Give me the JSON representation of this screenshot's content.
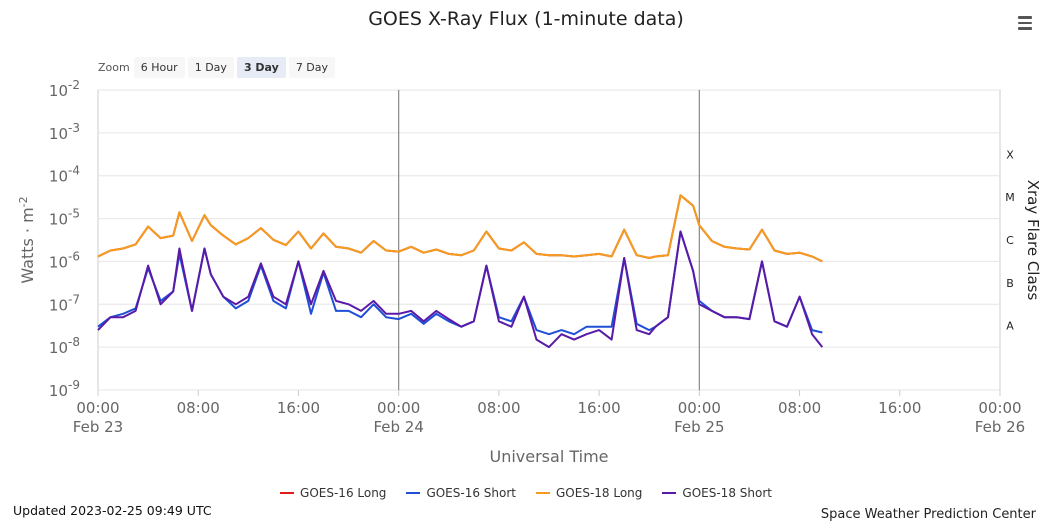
{
  "header": {
    "menu_icon": "hamburger-menu-icon"
  },
  "zoom": {
    "label": "Zoom",
    "options": [
      "6 Hour",
      "1 Day",
      "3 Day",
      "7 Day"
    ],
    "selected": "3 Day"
  },
  "footer": {
    "updated": "Updated 2023-02-25 09:49 UTC",
    "credit": "Space Weather Prediction Center"
  },
  "chart_data": {
    "type": "line",
    "title": "GOES X-Ray Flux (1-minute data)",
    "xlabel": "Universal Time",
    "ylabel": "Watts · m",
    "ylabel_superscript": "-2",
    "y2label": "Xray Flare Class",
    "yscale": "log",
    "ylim": [
      1e-09,
      0.01
    ],
    "y_tick_labels": [
      "10",
      "10",
      "10",
      "10",
      "10",
      "10",
      "10",
      "10"
    ],
    "y_tick_exponents": [
      "-2",
      "-3",
      "-4",
      "-5",
      "-6",
      "-7",
      "-8",
      "-9"
    ],
    "xlim": [
      "2023-02-23 00:00",
      "2023-02-26 00:00"
    ],
    "x_tick_times": [
      "00:00",
      "08:00",
      "16:00",
      "00:00",
      "08:00",
      "16:00",
      "00:00",
      "08:00",
      "16:00",
      "00:00"
    ],
    "x_tick_dates": [
      "Feb 23",
      "",
      "",
      "Feb 24",
      "",
      "",
      "Feb 25",
      "",
      "",
      "Feb 26"
    ],
    "x_ticks": [
      "2023-02-23 00:00",
      "2023-02-23 08:00",
      "2023-02-23 16:00",
      "2023-02-24 00:00",
      "2023-02-24 08:00",
      "2023-02-24 16:00",
      "2023-02-25 00:00",
      "2023-02-25 08:00",
      "2023-02-25 16:00",
      "2023-02-26 00:00"
    ],
    "flare_classes": [
      {
        "label": "X",
        "threshold": 0.0001
      },
      {
        "label": "M",
        "threshold": 1e-05
      },
      {
        "label": "C",
        "threshold": 1e-06
      },
      {
        "label": "B",
        "threshold": 1e-07
      },
      {
        "label": "A",
        "threshold": 1e-08
      }
    ],
    "day_boundaries": [
      "2023-02-24 00:00",
      "2023-02-25 00:00"
    ],
    "x": [
      "2023-02-23 00:00",
      "2023-02-23 01:00",
      "2023-02-23 02:00",
      "2023-02-23 03:00",
      "2023-02-23 04:00",
      "2023-02-23 05:00",
      "2023-02-23 06:00",
      "2023-02-23 06:30",
      "2023-02-23 07:30",
      "2023-02-23 08:30",
      "2023-02-23 09:00",
      "2023-02-23 10:00",
      "2023-02-23 11:00",
      "2023-02-23 12:00",
      "2023-02-23 13:00",
      "2023-02-23 14:00",
      "2023-02-23 15:00",
      "2023-02-23 16:00",
      "2023-02-23 17:00",
      "2023-02-23 18:00",
      "2023-02-23 19:00",
      "2023-02-23 20:00",
      "2023-02-23 21:00",
      "2023-02-23 22:00",
      "2023-02-23 23:00",
      "2023-02-24 00:00",
      "2023-02-24 01:00",
      "2023-02-24 02:00",
      "2023-02-24 03:00",
      "2023-02-24 04:00",
      "2023-02-24 05:00",
      "2023-02-24 06:00",
      "2023-02-24 07:00",
      "2023-02-24 08:00",
      "2023-02-24 09:00",
      "2023-02-24 10:00",
      "2023-02-24 11:00",
      "2023-02-24 12:00",
      "2023-02-24 13:00",
      "2023-02-24 14:00",
      "2023-02-24 15:00",
      "2023-02-24 16:00",
      "2023-02-24 17:00",
      "2023-02-24 18:00",
      "2023-02-24 19:00",
      "2023-02-24 20:00",
      "2023-02-24 20:30",
      "2023-02-24 21:30",
      "2023-02-24 22:30",
      "2023-02-24 23:30",
      "2023-02-25 00:00",
      "2023-02-25 01:00",
      "2023-02-25 02:00",
      "2023-02-25 03:00",
      "2023-02-25 04:00",
      "2023-02-25 05:00",
      "2023-02-25 06:00",
      "2023-02-25 07:00",
      "2023-02-25 08:00",
      "2023-02-25 09:00",
      "2023-02-25 09:49"
    ],
    "series": [
      {
        "name": "GOES-16 Long",
        "color": "#e31a1c",
        "values": [
          1.3e-06,
          1.8e-06,
          2e-06,
          2.5e-06,
          6.5e-06,
          3.5e-06,
          4e-06,
          1.4e-05,
          3e-06,
          1.2e-05,
          7e-06,
          4e-06,
          2.5e-06,
          3.5e-06,
          6e-06,
          3.2e-06,
          2.4e-06,
          5e-06,
          2e-06,
          4.5e-06,
          2.2e-06,
          2e-06,
          1.6e-06,
          3e-06,
          1.8e-06,
          1.7e-06,
          2.2e-06,
          1.6e-06,
          1.9e-06,
          1.5e-06,
          1.4e-06,
          1.8e-06,
          5e-06,
          2e-06,
          1.8e-06,
          2.8e-06,
          1.5e-06,
          1.4e-06,
          1.4e-06,
          1.3e-06,
          1.4e-06,
          1.5e-06,
          1.3e-06,
          5.5e-06,
          1.4e-06,
          1.2e-06,
          1.3e-06,
          1.4e-06,
          3.5e-05,
          2e-05,
          7e-06,
          3e-06,
          2.2e-06,
          2e-06,
          1.9e-06,
          5.5e-06,
          1.8e-06,
          1.5e-06,
          1.6e-06,
          1.3e-06,
          1e-06
        ]
      },
      {
        "name": "GOES-16 Short",
        "color": "#1f4fd6",
        "values": [
          3e-08,
          5e-08,
          6e-08,
          8e-08,
          7e-07,
          1.2e-07,
          2e-07,
          1.5e-06,
          7e-08,
          2e-06,
          5e-07,
          1.5e-07,
          8e-08,
          1.2e-07,
          8e-07,
          1.2e-07,
          8e-08,
          1e-06,
          6e-08,
          5.5e-07,
          7e-08,
          7e-08,
          5e-08,
          1e-07,
          5e-08,
          4.5e-08,
          6e-08,
          3.5e-08,
          6e-08,
          4e-08,
          3e-08,
          4e-08,
          8e-07,
          5e-08,
          4e-08,
          1.5e-07,
          2.5e-08,
          2e-08,
          2.5e-08,
          2e-08,
          3e-08,
          3e-08,
          3e-08,
          1.2e-06,
          3.5e-08,
          2.5e-08,
          3e-08,
          5e-08,
          5e-06,
          6e-07,
          1.2e-07,
          7e-08,
          5e-08,
          5e-08,
          4.5e-08,
          1e-06,
          4e-08,
          3e-08,
          1.5e-07,
          2.5e-08,
          2.2e-08
        ]
      },
      {
        "name": "GOES-18 Long",
        "color": "#f39c1f",
        "values": [
          1.3e-06,
          1.8e-06,
          2e-06,
          2.5e-06,
          6.5e-06,
          3.5e-06,
          4e-06,
          1.4e-05,
          3e-06,
          1.2e-05,
          7e-06,
          4e-06,
          2.5e-06,
          3.5e-06,
          6e-06,
          3.2e-06,
          2.4e-06,
          5e-06,
          2e-06,
          4.5e-06,
          2.2e-06,
          2e-06,
          1.6e-06,
          3e-06,
          1.8e-06,
          1.7e-06,
          2.2e-06,
          1.6e-06,
          1.9e-06,
          1.5e-06,
          1.4e-06,
          1.8e-06,
          5e-06,
          2e-06,
          1.8e-06,
          2.8e-06,
          1.5e-06,
          1.4e-06,
          1.4e-06,
          1.3e-06,
          1.4e-06,
          1.5e-06,
          1.3e-06,
          5.5e-06,
          1.4e-06,
          1.2e-06,
          1.3e-06,
          1.4e-06,
          3.5e-05,
          2e-05,
          7e-06,
          3e-06,
          2.2e-06,
          2e-06,
          1.9e-06,
          5.5e-06,
          1.8e-06,
          1.5e-06,
          1.6e-06,
          1.3e-06,
          1e-06
        ]
      },
      {
        "name": "GOES-18 Short",
        "color": "#5a1aa8",
        "values": [
          2.5e-08,
          5e-08,
          5e-08,
          7e-08,
          8e-07,
          1e-07,
          2e-07,
          2e-06,
          7e-08,
          2e-06,
          5e-07,
          1.5e-07,
          1e-07,
          1.5e-07,
          9e-07,
          1.5e-07,
          1e-07,
          1e-06,
          1e-07,
          6e-07,
          1.2e-07,
          1e-07,
          7e-08,
          1.2e-07,
          6e-08,
          6e-08,
          7e-08,
          4e-08,
          7e-08,
          4.5e-08,
          3e-08,
          4e-08,
          8e-07,
          4e-08,
          3e-08,
          1.5e-07,
          1.5e-08,
          1e-08,
          2e-08,
          1.5e-08,
          2e-08,
          2.5e-08,
          1.5e-08,
          1.2e-06,
          2.5e-08,
          2e-08,
          3e-08,
          5e-08,
          5e-06,
          6e-07,
          1e-07,
          7e-08,
          5e-08,
          5e-08,
          4.5e-08,
          1e-06,
          4e-08,
          3e-08,
          1.5e-07,
          2e-08,
          1e-08
        ]
      }
    ]
  }
}
